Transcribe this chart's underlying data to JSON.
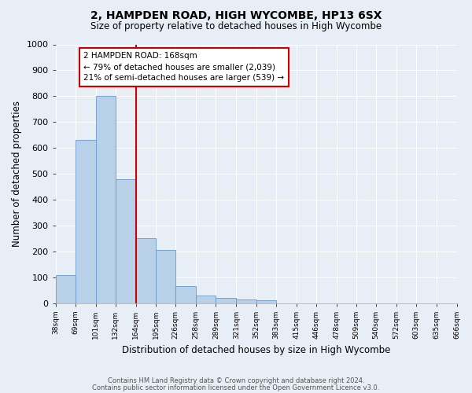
{
  "title": "2, HAMPDEN ROAD, HIGH WYCOMBE, HP13 6SX",
  "subtitle": "Size of property relative to detached houses in High Wycombe",
  "xlabel": "Distribution of detached houses by size in High Wycombe",
  "ylabel": "Number of detached properties",
  "bar_edges": [
    38,
    69,
    101,
    132,
    164,
    195,
    226,
    258,
    289,
    321,
    352,
    383,
    415
  ],
  "bar_heights": [
    110,
    630,
    800,
    480,
    250,
    205,
    65,
    30,
    20,
    15,
    10,
    0,
    0
  ],
  "bar_color": "#b8d0e8",
  "bar_edge_color": "#6699cc",
  "vline_x": 164,
  "vline_color": "#cc0000",
  "annotation_text": "2 HAMPDEN ROAD: 168sqm\n← 79% of detached houses are smaller (2,039)\n21% of semi-detached houses are larger (539) →",
  "annotation_box_color": "#cc0000",
  "ylim": [
    0,
    1000
  ],
  "yticks": [
    0,
    100,
    200,
    300,
    400,
    500,
    600,
    700,
    800,
    900,
    1000
  ],
  "xtick_labels": [
    "38sqm",
    "69sqm",
    "101sqm",
    "132sqm",
    "164sqm",
    "195sqm",
    "226sqm",
    "258sqm",
    "289sqm",
    "321sqm",
    "352sqm",
    "383sqm",
    "415sqm",
    "446sqm",
    "478sqm",
    "509sqm",
    "540sqm",
    "572sqm",
    "603sqm",
    "635sqm",
    "666sqm"
  ],
  "xtick_positions": [
    38,
    69,
    101,
    132,
    164,
    195,
    226,
    258,
    289,
    321,
    352,
    383,
    415,
    446,
    478,
    509,
    540,
    572,
    603,
    635,
    666
  ],
  "xlim": [
    38,
    666
  ],
  "background_color": "#e8eef5",
  "grid_color": "#ffffff",
  "footer_line1": "Contains HM Land Registry data © Crown copyright and database right 2024.",
  "footer_line2": "Contains public sector information licensed under the Open Government Licence v3.0."
}
